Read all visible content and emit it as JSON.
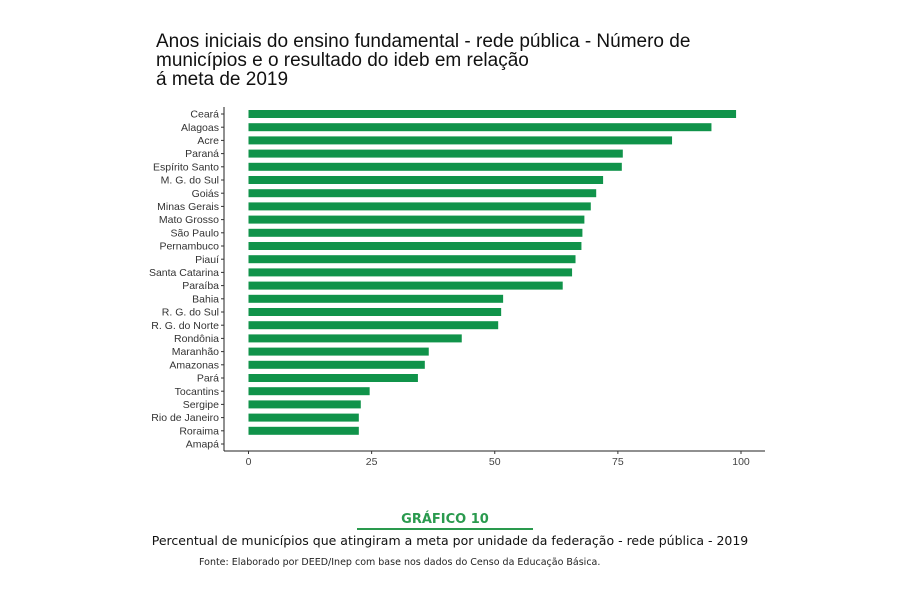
{
  "chart_data": {
    "type": "bar",
    "orientation": "horizontal",
    "title_lines": [
      "Anos iniciais do ensino fundamental - rede pública - Número de",
      "municípios e  o resultado do ideb em relação",
      "á meta de 2019"
    ],
    "categories": [
      "Ceará",
      "Alagoas",
      "Acre",
      "Paraná",
      "Espírito Santo",
      "M. G. do Sul",
      "Goiás",
      "Minas Gerais",
      "Mato Grosso",
      "São Paulo",
      "Pernambuco",
      "Piauí",
      "Santa Catarina",
      "Paraíba",
      "Bahia",
      "R. G. do Sul",
      "R. G. do Norte",
      "Rondônia",
      "Maranhão",
      "Amazonas",
      "Pará",
      "Tocantins",
      "Sergipe",
      "Rio de Janeiro",
      "Roraima",
      "Amapá"
    ],
    "values": [
      99,
      94,
      86,
      76,
      75.8,
      72,
      70.6,
      69.5,
      68.2,
      67.8,
      67.6,
      66.4,
      65.7,
      63.8,
      51.7,
      51.3,
      50.7,
      43.3,
      36.6,
      35.8,
      34.4,
      24.6,
      22.8,
      22.4,
      22.4,
      0
    ],
    "xticks": [
      0,
      25,
      50,
      75,
      100
    ],
    "xlim": [
      0,
      100
    ],
    "bar_color": "#10934a",
    "grid": false
  },
  "caption": {
    "figure_label": "GRÁFICO 10",
    "text": "Percentual de municípios que atingiram a meta por unidade da federação - rede pública - 2019",
    "source": "Fonte: Elaborado por DEED/Inep com base nos dados do Censo da Educação Básica."
  },
  "colors": {
    "accent": "#2a9a4e",
    "bar": "#10934a"
  }
}
